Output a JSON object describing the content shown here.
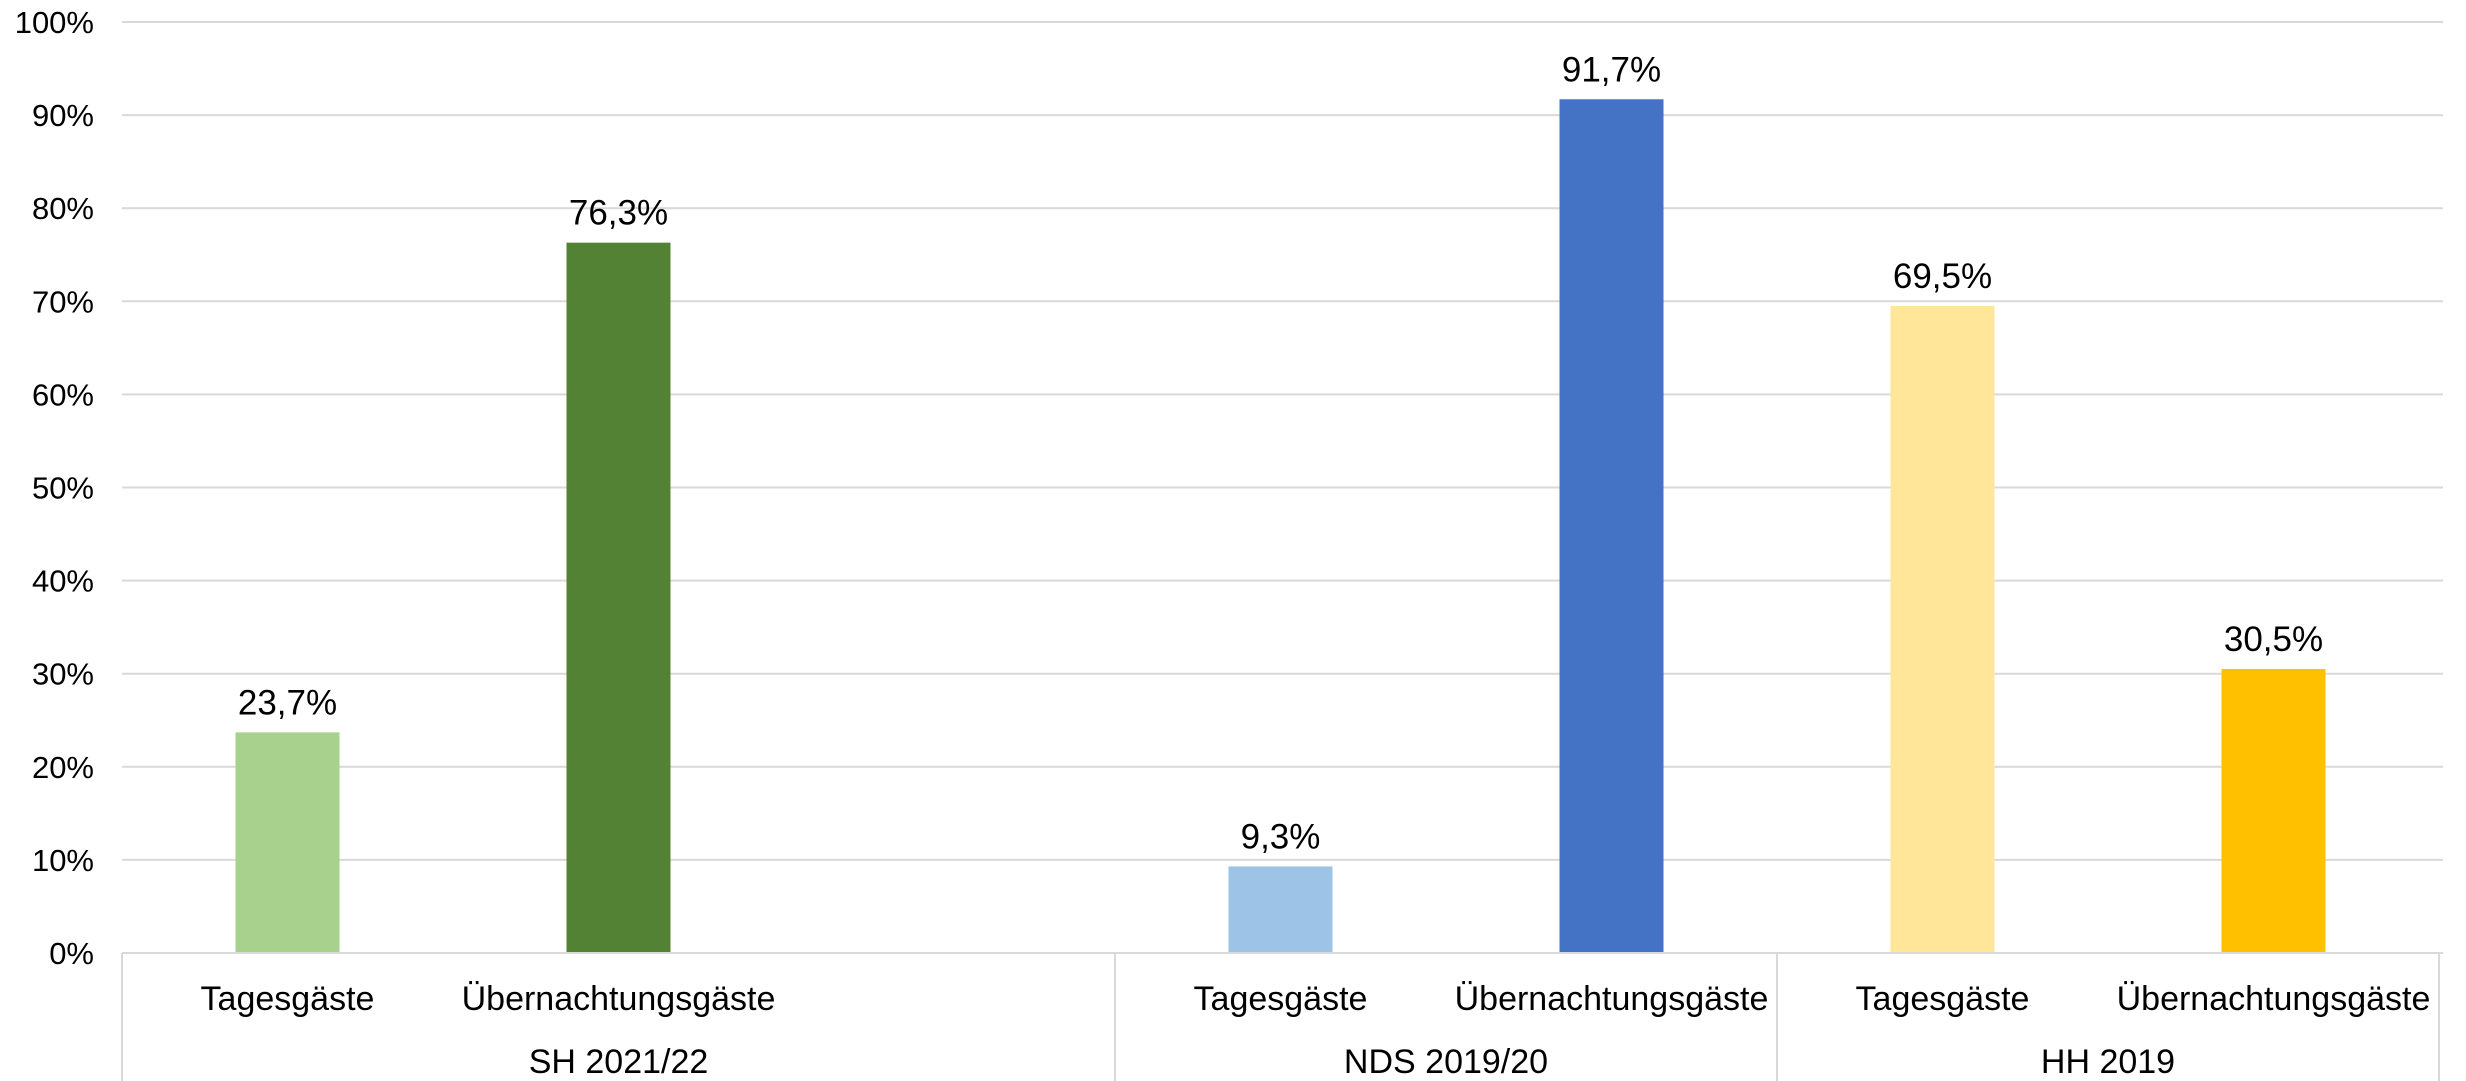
{
  "chart_data": {
    "type": "bar",
    "ylim": [
      0,
      100
    ],
    "y_unit": "%",
    "y_ticks": [
      "0%",
      "10%",
      "20%",
      "30%",
      "40%",
      "50%",
      "60%",
      "70%",
      "80%",
      "90%",
      "100%"
    ],
    "grid": true,
    "groups": [
      {
        "label": "SH 2021/22",
        "bars": [
          {
            "category": "Tagesgäste",
            "value": 23.7,
            "label": "23,7%",
            "color": "#A9D18E"
          },
          {
            "category": "Übernachtungsgäste",
            "value": 76.3,
            "label": "76,3%",
            "color": "#548235"
          }
        ]
      },
      {
        "label": "NDS 2019/20",
        "bars": [
          {
            "category": "Tagesgäste",
            "value": 9.3,
            "label": "9,3%",
            "color": "#9DC3E6"
          },
          {
            "category": "Übernachtungsgäste",
            "value": 91.7,
            "label": "91,7%",
            "color": "#4472C4"
          }
        ]
      },
      {
        "label": "HH 2019",
        "bars": [
          {
            "category": "Tagesgäste",
            "value": 69.5,
            "label": "69,5%",
            "color": "#FFE699"
          },
          {
            "category": "Übernachtungsgäste",
            "value": 30.5,
            "label": "30,5%",
            "color": "#FFC000"
          }
        ]
      }
    ]
  }
}
